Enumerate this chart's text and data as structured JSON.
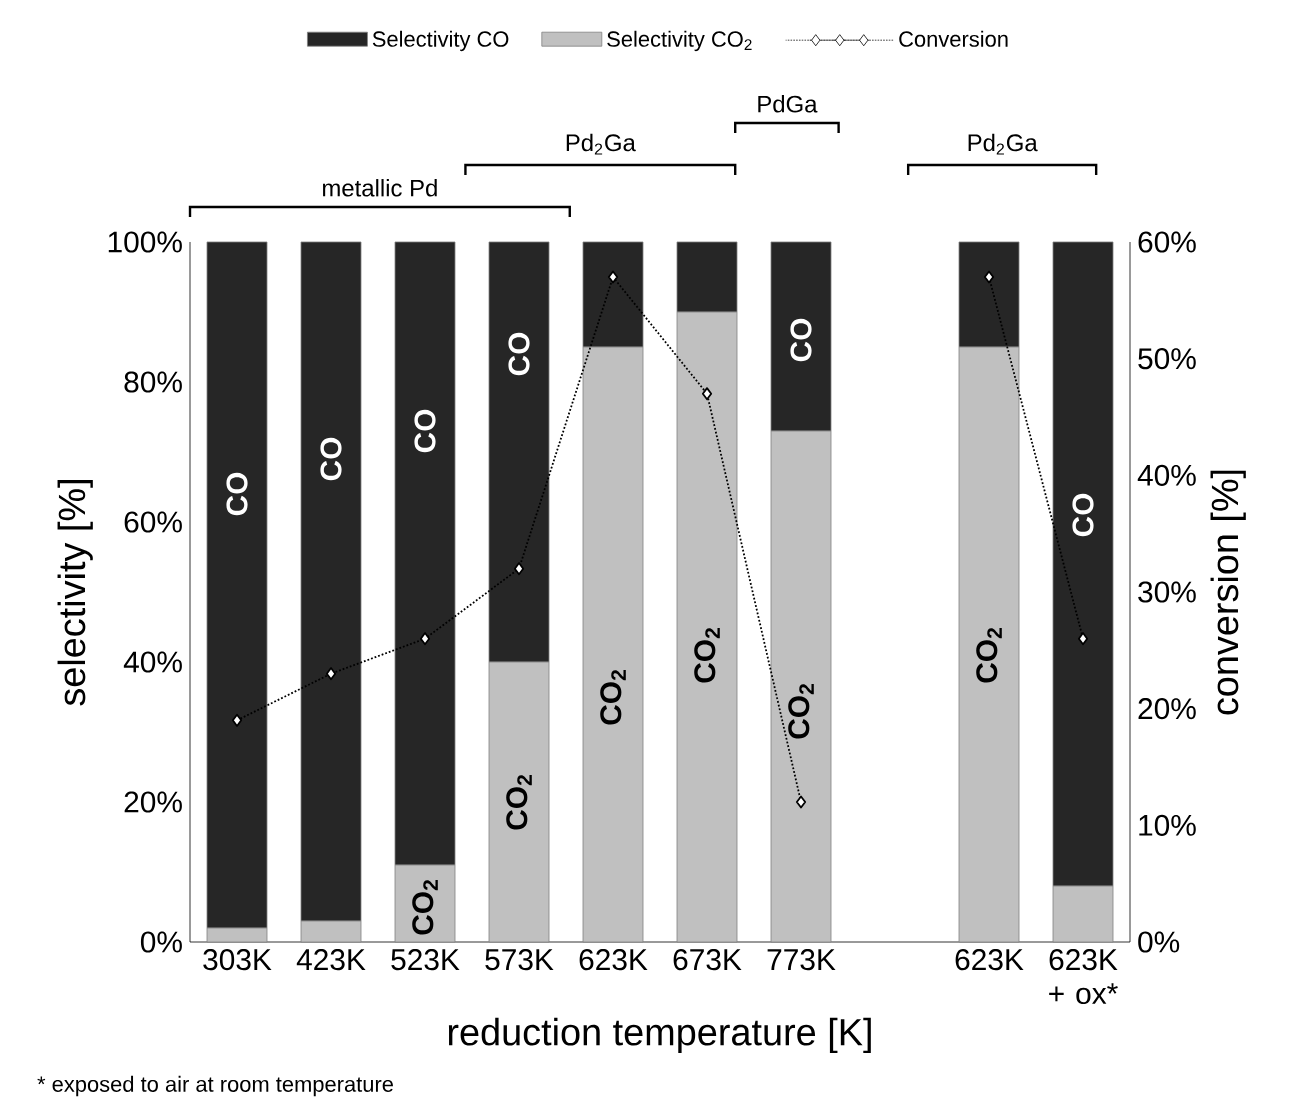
{
  "chart_data": {
    "type": "bar",
    "stacked": true,
    "categories": [
      "303K",
      "423K",
      "523K",
      "573K",
      "623K",
      "673K",
      "773K",
      null,
      "623K",
      "623K + ox*"
    ],
    "series": [
      {
        "name": "Selectivity CO$_{2}$",
        "color": "#c0c0c0",
        "values": [
          2,
          3,
          11,
          40,
          85,
          90,
          73,
          null,
          85,
          8
        ]
      },
      {
        "name": "Selectivity CO",
        "color": "#262626",
        "values": [
          98,
          97,
          89,
          60,
          15,
          10,
          27,
          null,
          15,
          92
        ]
      },
      {
        "name": "Conversion",
        "type": "line",
        "axis": "y2",
        "color": "#000000",
        "marker": "diamond",
        "line_style": "dotted",
        "values": [
          19,
          23,
          26,
          32,
          57,
          47,
          12,
          null,
          57,
          26
        ]
      }
    ],
    "xlabel": "reduction temperature [K]",
    "ylabel": "selectivity [%]",
    "y2label": "conversion [%]",
    "ylim": [
      0,
      100
    ],
    "yticks": [
      {
        "value": 0,
        "label": "0%"
      },
      {
        "value": 20,
        "label": "20%"
      },
      {
        "value": 40,
        "label": "40%"
      },
      {
        "value": 60,
        "label": "60%"
      },
      {
        "value": 80,
        "label": "80%"
      },
      {
        "value": 100,
        "label": "100%"
      }
    ],
    "y2lim": [
      0,
      60
    ],
    "y2ticks": [
      {
        "value": 0,
        "label": "0%"
      },
      {
        "value": 10,
        "label": "10%"
      },
      {
        "value": 20,
        "label": "20%"
      },
      {
        "value": 30,
        "label": "30%"
      },
      {
        "value": 40,
        "label": "40%"
      },
      {
        "value": 50,
        "label": "50%"
      },
      {
        "value": 60,
        "label": "60%"
      }
    ],
    "legend": "top",
    "annotations": [
      "metallic Pd",
      "Pd$_{2}$Ga",
      "PdGa",
      "Pd$_{2}$Ga",
      "* exposed to air at room temperature",
      "CO",
      "CO",
      "CO",
      "CO",
      "CO",
      "CO",
      "CO$_{2}$",
      "CO$_{2}$",
      "CO$_{2}$",
      "CO$_{2}$",
      "CO$_{2}$",
      "CO$_{2}$"
    ]
  }
}
